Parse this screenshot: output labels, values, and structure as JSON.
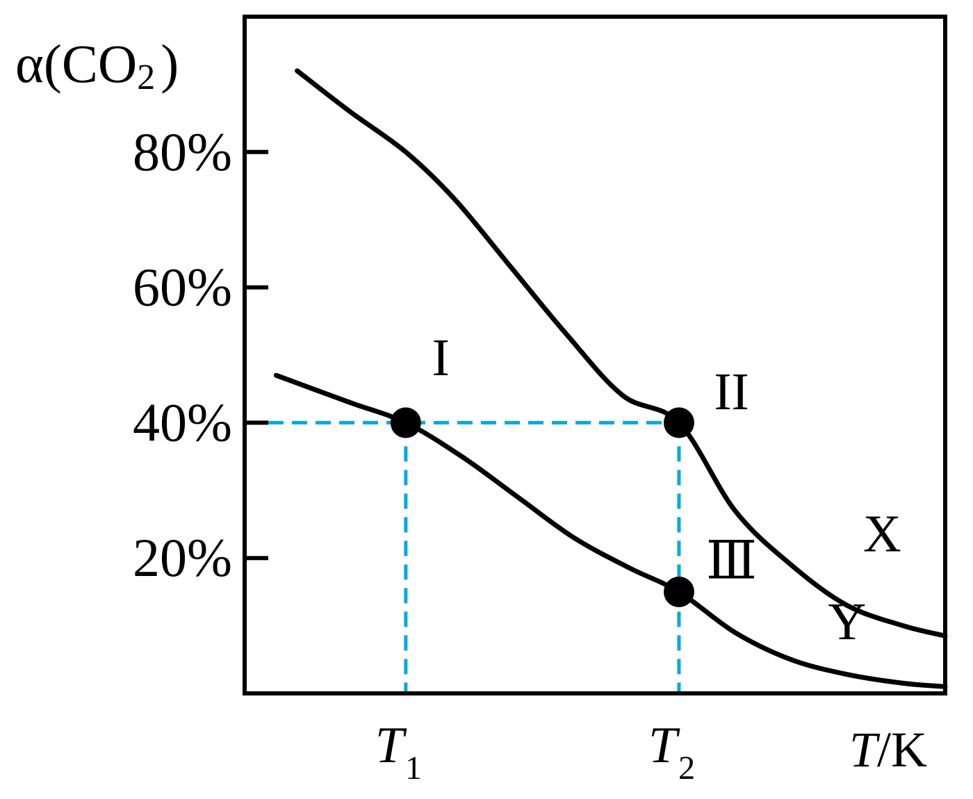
{
  "chart_data": {
    "type": "line",
    "ylabel": {
      "prefix": "α(CO",
      "sub": "2",
      "suffix": ")"
    },
    "xlabel": {
      "italic": "T",
      "rest": "/K"
    },
    "xlim": [
      0,
      100
    ],
    "ylim": [
      0,
      100
    ],
    "yticks": [
      {
        "value": 20,
        "label": "20%"
      },
      {
        "value": 40,
        "label": "40%"
      },
      {
        "value": 60,
        "label": "60%"
      },
      {
        "value": 80,
        "label": "80%"
      }
    ],
    "xticks": [
      {
        "value": 23,
        "main": "T",
        "sub": "1"
      },
      {
        "value": 62,
        "main": "T",
        "sub": "2"
      }
    ],
    "grid": false,
    "series": [
      {
        "name": "X",
        "color": "#000000",
        "points": [
          [
            7.5,
            92
          ],
          [
            15,
            86
          ],
          [
            23,
            80
          ],
          [
            30,
            73
          ],
          [
            38,
            63
          ],
          [
            46,
            53
          ],
          [
            54,
            44
          ],
          [
            62,
            40
          ],
          [
            70,
            27
          ],
          [
            78,
            19
          ],
          [
            86,
            13
          ],
          [
            94,
            10
          ],
          [
            100,
            8.5
          ]
        ],
        "label_at": [
          91,
          21
        ]
      },
      {
        "name": "Y",
        "color": "#000000",
        "points": [
          [
            4.5,
            47
          ],
          [
            15,
            43
          ],
          [
            23,
            40
          ],
          [
            31,
            35
          ],
          [
            39,
            29
          ],
          [
            47,
            23
          ],
          [
            55,
            18.5
          ],
          [
            62,
            15
          ],
          [
            70,
            9
          ],
          [
            78,
            5
          ],
          [
            86,
            2.8
          ],
          [
            94,
            1.5
          ],
          [
            100,
            1
          ]
        ],
        "label_at": [
          86,
          8
        ]
      }
    ],
    "points": [
      {
        "label": "I",
        "x": 23,
        "y": 40,
        "label_at": [
          28,
          47
        ]
      },
      {
        "label": "II",
        "x": 62,
        "y": 40,
        "label_at": [
          69.5,
          42
        ]
      },
      {
        "label": "Ⅲ",
        "x": 62,
        "y": 15,
        "label_at": [
          69.5,
          17
        ]
      }
    ],
    "reference_lines": {
      "color": "#00a9e8",
      "horizontal": {
        "y": 40,
        "x_from": 0,
        "x_to": 62
      },
      "vertical": [
        {
          "x": 23,
          "y_from": 0,
          "y_to": 40
        },
        {
          "x": 62,
          "y_from": 0,
          "y_to": 40
        }
      ]
    }
  }
}
